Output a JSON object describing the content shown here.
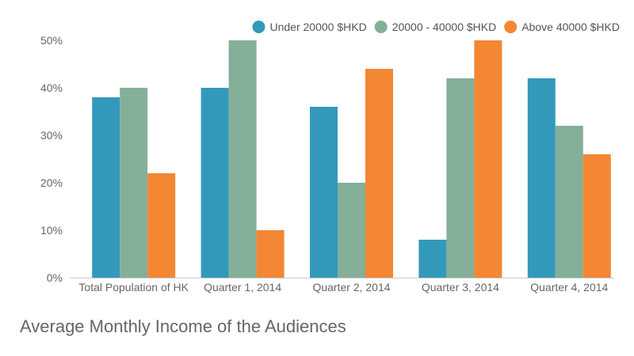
{
  "chart_data": {
    "type": "bar",
    "title": "Average Monthly Income of the Audiences",
    "categories": [
      "Total Population of HK",
      "Quarter 1, 2014",
      "Quarter 2, 2014",
      "Quarter 3, 2014",
      "Quarter 4, 2014"
    ],
    "series": [
      {
        "name": "Under 20000 $HKD",
        "color": "#3399bb",
        "values": [
          38,
          40,
          36,
          8,
          42
        ]
      },
      {
        "name": "20000 - 40000 $HKD",
        "color": "#84af99",
        "values": [
          40,
          50,
          20,
          42,
          32
        ]
      },
      {
        "name": "Above 40000 $HKD",
        "color": "#f38733",
        "values": [
          22,
          10,
          44,
          50,
          26
        ]
      }
    ],
    "ylim": [
      0,
      50
    ],
    "yticks": [
      "0%",
      "10%",
      "20%",
      "30%",
      "40%",
      "50%"
    ],
    "grid": false,
    "legend": "top-right",
    "xlabel": "",
    "ylabel": ""
  }
}
